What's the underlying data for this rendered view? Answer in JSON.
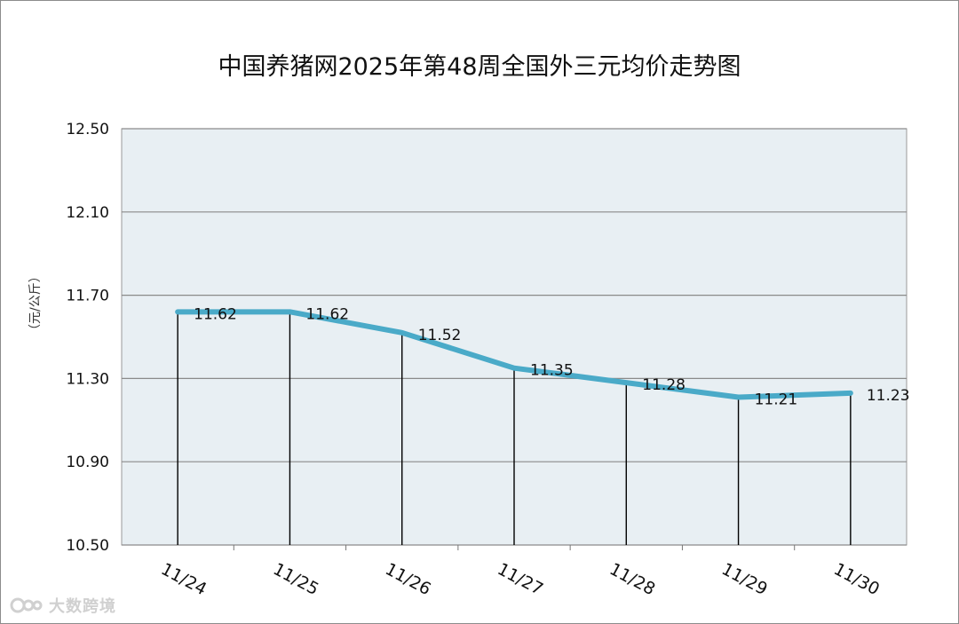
{
  "chart_data": {
    "type": "line",
    "title": "中国养猪网2025年第48周全国外三元均价走势图",
    "ylabel": "（元/公斤）",
    "xlabel": "",
    "categories": [
      "11/24",
      "11/25",
      "11/26",
      "11/27",
      "11/28",
      "11/29",
      "11/30"
    ],
    "series": [
      {
        "values": [
          11.62,
          11.62,
          11.52,
          11.35,
          11.28,
          11.21,
          11.23
        ]
      }
    ],
    "ylim": [
      10.5,
      12.5
    ],
    "yticks": [
      "12.50",
      "12.10",
      "11.70",
      "11.30",
      "10.90",
      "10.50"
    ],
    "data_labels": [
      "11.62",
      "11.62",
      "11.52",
      "11.35",
      "11.28",
      "11.21",
      "11.23"
    ],
    "grid": true,
    "drop_lines": true,
    "legend": "none",
    "colors": {
      "line": "#4aaac8",
      "plot_bg": "#e8eff3",
      "grid": "#8a8a8a"
    }
  },
  "watermark": {
    "text": "大数跨境"
  }
}
